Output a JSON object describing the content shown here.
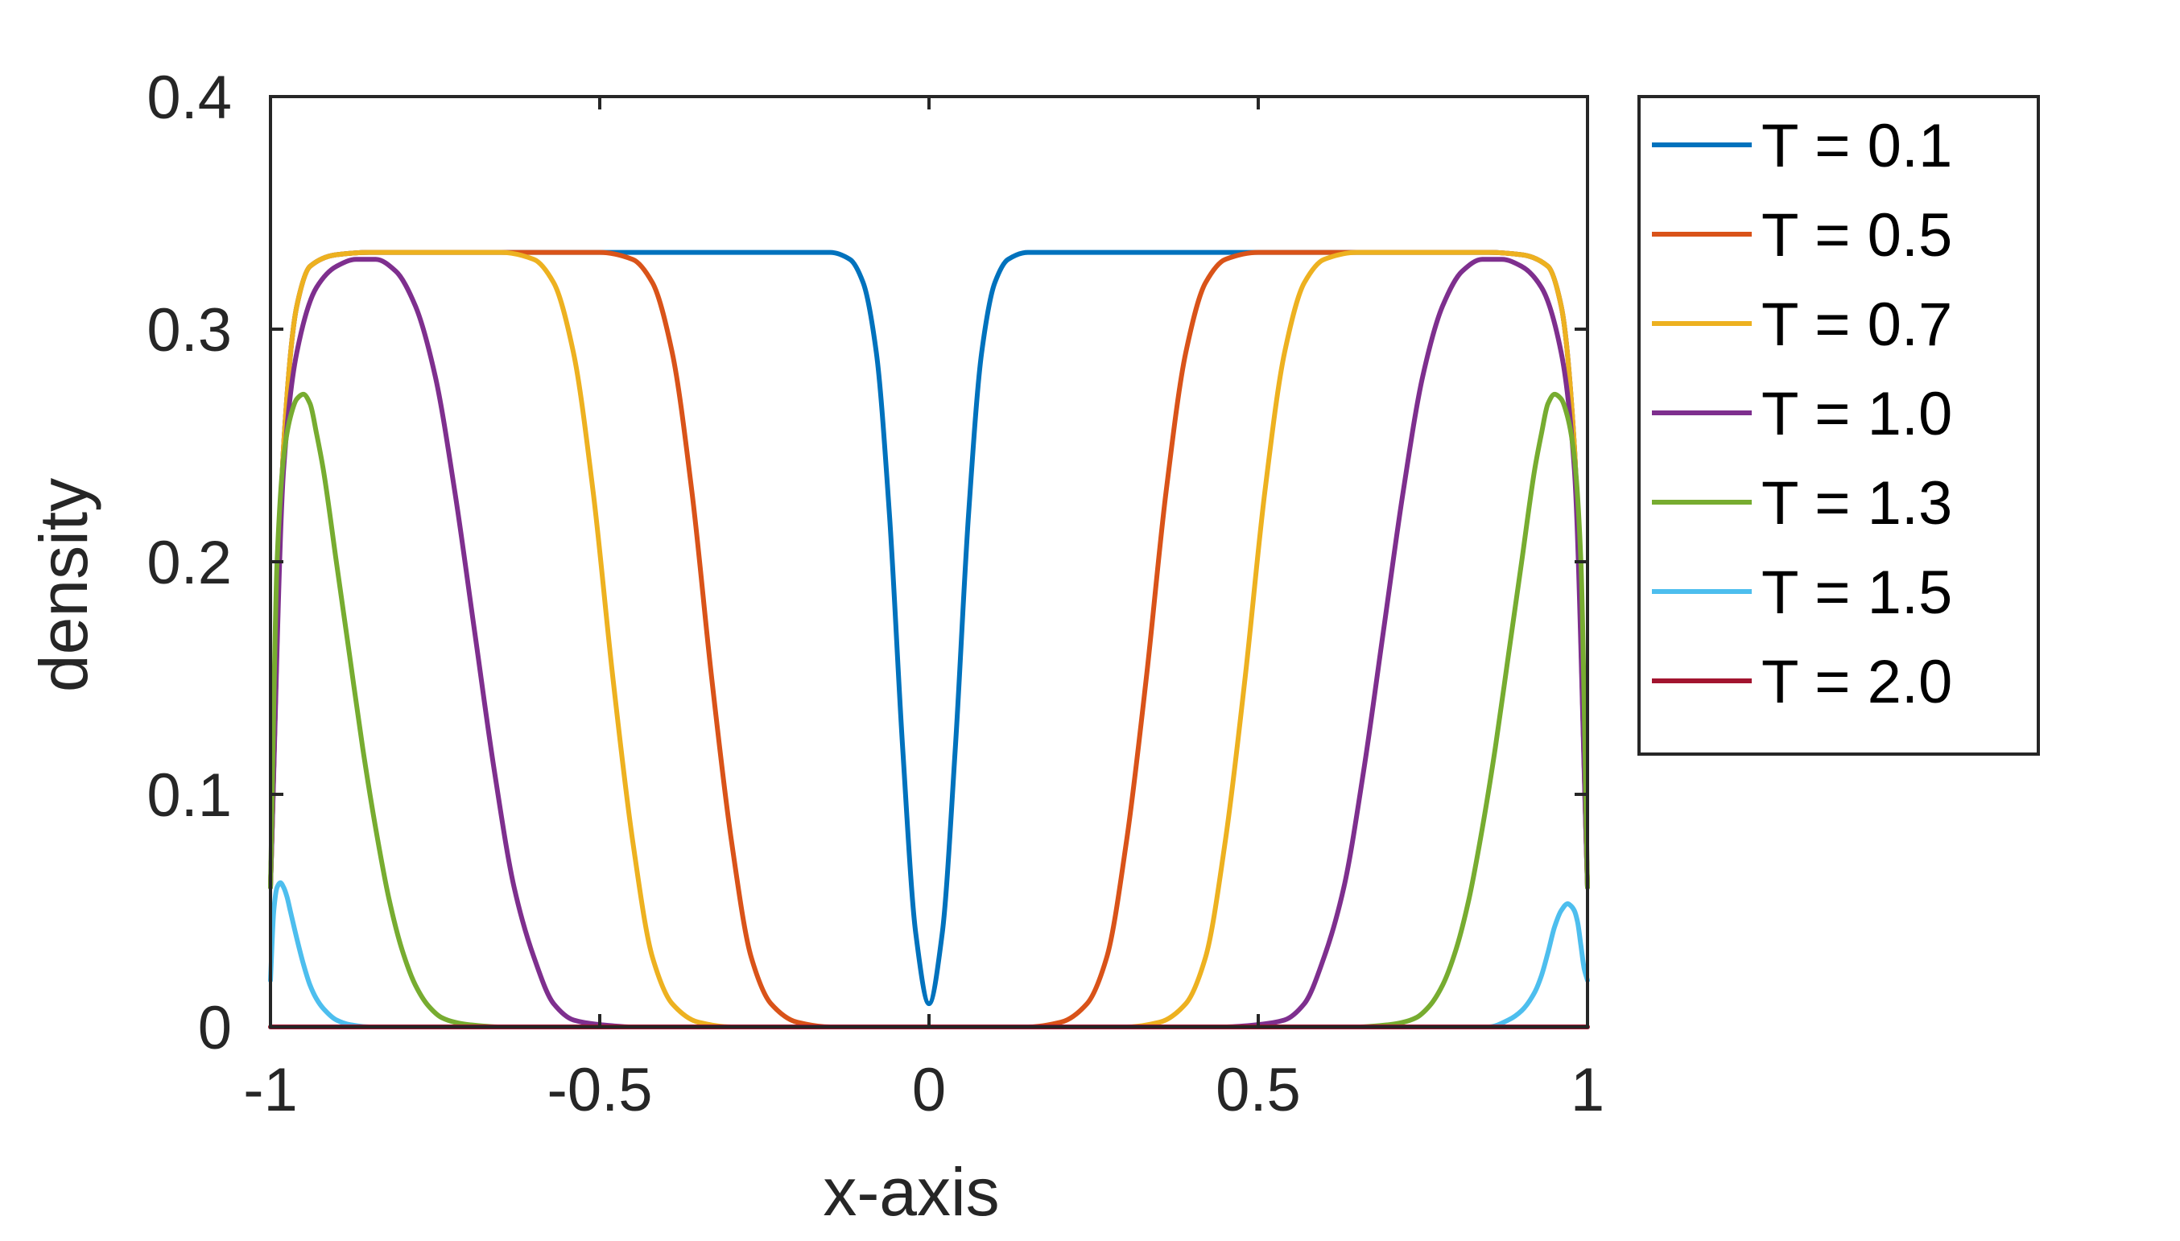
{
  "chart_data": {
    "type": "line",
    "xlabel": "x-axis",
    "ylabel": "density",
    "xlim": [
      -1,
      1
    ],
    "ylim": [
      0,
      0.4
    ],
    "xticks": [
      -1,
      -0.5,
      0,
      0.5,
      1
    ],
    "xtick_labels": [
      "-1",
      "-0.5",
      "0",
      "0.5",
      "1"
    ],
    "yticks": [
      0,
      0.1,
      0.2,
      0.3,
      0.4
    ],
    "ytick_labels": [
      "0",
      "0.1",
      "0.2",
      "0.3",
      "0.4"
    ],
    "grid": false,
    "legend_position": "outside-right-top",
    "series": [
      {
        "name": "T = 0.1",
        "color": "#0072BD",
        "x": [
          -1,
          -0.98,
          -0.96,
          -0.94,
          -0.9,
          -0.85,
          -0.6,
          -0.3,
          -0.15,
          -0.12,
          -0.1,
          -0.08,
          -0.06,
          -0.04,
          -0.02,
          0,
          0.02,
          0.04,
          0.06,
          0.08,
          0.1,
          0.12,
          0.15,
          0.3,
          0.6,
          0.85,
          0.9,
          0.94,
          0.96,
          0.98,
          1
        ],
        "y": [
          0.06,
          0.25,
          0.31,
          0.327,
          0.332,
          0.333,
          0.333,
          0.333,
          0.333,
          0.33,
          0.32,
          0.29,
          0.22,
          0.12,
          0.04,
          0.01,
          0.04,
          0.12,
          0.22,
          0.29,
          0.32,
          0.33,
          0.333,
          0.333,
          0.333,
          0.333,
          0.332,
          0.327,
          0.31,
          0.25,
          0.06
        ]
      },
      {
        "name": "T = 0.5",
        "color": "#D95319",
        "x": [
          -1,
          -0.98,
          -0.96,
          -0.94,
          -0.9,
          -0.85,
          -0.5,
          -0.45,
          -0.42,
          -0.39,
          -0.36,
          -0.33,
          -0.3,
          -0.27,
          -0.24,
          -0.2,
          -0.15,
          0,
          0.15,
          0.2,
          0.24,
          0.27,
          0.3,
          0.33,
          0.36,
          0.39,
          0.42,
          0.45,
          0.5,
          0.85,
          0.9,
          0.94,
          0.96,
          0.98,
          1
        ],
        "y": [
          0.06,
          0.25,
          0.31,
          0.327,
          0.332,
          0.333,
          0.333,
          0.33,
          0.32,
          0.29,
          0.23,
          0.15,
          0.08,
          0.03,
          0.01,
          0.002,
          0,
          0,
          0,
          0.002,
          0.01,
          0.03,
          0.08,
          0.15,
          0.23,
          0.29,
          0.32,
          0.33,
          0.333,
          0.333,
          0.332,
          0.327,
          0.31,
          0.25,
          0.06
        ]
      },
      {
        "name": "T = 0.7",
        "color": "#EDB120",
        "x": [
          -1,
          -0.98,
          -0.96,
          -0.94,
          -0.9,
          -0.85,
          -0.65,
          -0.6,
          -0.57,
          -0.54,
          -0.51,
          -0.48,
          -0.45,
          -0.42,
          -0.39,
          -0.35,
          -0.3,
          0,
          0.3,
          0.35,
          0.39,
          0.42,
          0.45,
          0.48,
          0.51,
          0.54,
          0.57,
          0.6,
          0.65,
          0.85,
          0.9,
          0.94,
          0.96,
          0.98,
          1
        ],
        "y": [
          0.06,
          0.25,
          0.31,
          0.327,
          0.332,
          0.333,
          0.333,
          0.33,
          0.32,
          0.29,
          0.23,
          0.15,
          0.08,
          0.03,
          0.01,
          0.002,
          0,
          0,
          0,
          0.002,
          0.01,
          0.03,
          0.08,
          0.15,
          0.23,
          0.29,
          0.32,
          0.33,
          0.333,
          0.333,
          0.332,
          0.327,
          0.31,
          0.25,
          0.06
        ]
      },
      {
        "name": "T = 1.0",
        "color": "#7E2F8E",
        "x": [
          -1,
          -0.98,
          -0.96,
          -0.93,
          -0.9,
          -0.87,
          -0.84,
          -0.81,
          -0.78,
          -0.75,
          -0.72,
          -0.69,
          -0.66,
          -0.63,
          -0.6,
          -0.57,
          -0.54,
          -0.5,
          -0.45,
          0,
          0.45,
          0.5,
          0.54,
          0.57,
          0.6,
          0.63,
          0.66,
          0.69,
          0.72,
          0.75,
          0.78,
          0.81,
          0.84,
          0.87,
          0.9,
          0.93,
          0.96,
          0.98,
          1
        ],
        "y": [
          0.06,
          0.24,
          0.29,
          0.318,
          0.327,
          0.33,
          0.33,
          0.325,
          0.31,
          0.28,
          0.23,
          0.17,
          0.11,
          0.06,
          0.03,
          0.01,
          0.003,
          0.001,
          0,
          0,
          0,
          0.001,
          0.003,
          0.01,
          0.03,
          0.06,
          0.11,
          0.17,
          0.23,
          0.28,
          0.31,
          0.325,
          0.33,
          0.33,
          0.327,
          0.318,
          0.29,
          0.24,
          0.06
        ]
      },
      {
        "name": "T = 1.3",
        "color": "#77AC30",
        "x": [
          -1,
          -0.99,
          -0.98,
          -0.97,
          -0.96,
          -0.95,
          -0.94,
          -0.93,
          -0.92,
          -0.9,
          -0.88,
          -0.86,
          -0.84,
          -0.82,
          -0.8,
          -0.78,
          -0.76,
          -0.74,
          -0.72,
          -0.7,
          -0.65,
          0,
          0.65,
          0.7,
          0.72,
          0.74,
          0.76,
          0.78,
          0.8,
          0.82,
          0.84,
          0.86,
          0.88,
          0.9,
          0.92,
          0.93,
          0.94,
          0.95,
          0.96,
          0.97,
          0.98,
          0.99,
          1
        ],
        "y": [
          0.06,
          0.2,
          0.245,
          0.262,
          0.27,
          0.272,
          0.268,
          0.255,
          0.24,
          0.2,
          0.16,
          0.12,
          0.085,
          0.055,
          0.033,
          0.018,
          0.009,
          0.004,
          0.002,
          0.001,
          0,
          0,
          0,
          0.001,
          0.002,
          0.004,
          0.009,
          0.018,
          0.033,
          0.055,
          0.085,
          0.12,
          0.16,
          0.2,
          0.24,
          0.255,
          0.268,
          0.272,
          0.27,
          0.262,
          0.245,
          0.2,
          0.06
        ]
      },
      {
        "name": "T = 1.5",
        "color": "#4DBEEE",
        "x": [
          -1,
          -0.995,
          -0.99,
          -0.985,
          -0.98,
          -0.975,
          -0.97,
          -0.96,
          -0.95,
          -0.94,
          -0.93,
          -0.92,
          -0.9,
          -0.88,
          -0.85,
          -0.8,
          0,
          0.8,
          0.85,
          0.88,
          0.9,
          0.92,
          0.93,
          0.94,
          0.95,
          0.96,
          0.97,
          0.975,
          0.98,
          0.985,
          0.99,
          0.995,
          1
        ],
        "y": [
          0.02,
          0.05,
          0.06,
          0.062,
          0.06,
          0.056,
          0.05,
          0.038,
          0.027,
          0.018,
          0.012,
          0.008,
          0.003,
          0.001,
          0,
          0,
          0,
          0,
          0,
          0.003,
          0.007,
          0.015,
          0.022,
          0.032,
          0.043,
          0.05,
          0.053,
          0.052,
          0.05,
          0.045,
          0.035,
          0.025,
          0.02
        ]
      },
      {
        "name": "T = 2.0",
        "color": "#A2142F",
        "x": [
          -1,
          1
        ],
        "y": [
          0,
          0
        ]
      }
    ]
  }
}
